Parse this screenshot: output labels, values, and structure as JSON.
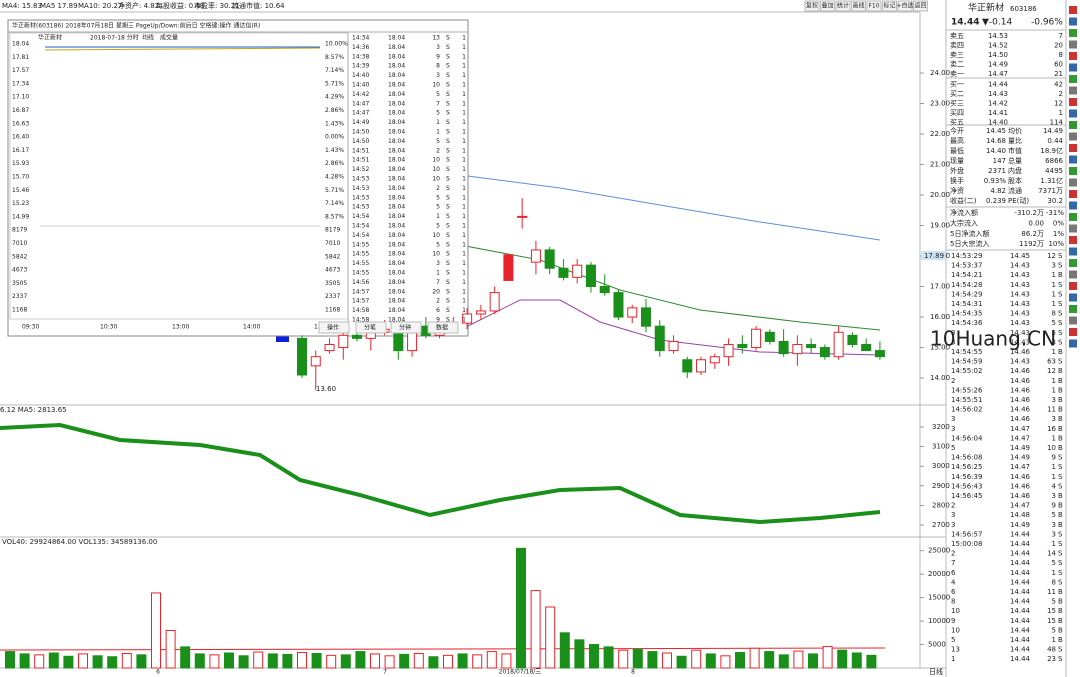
{
  "top_bar": {
    "ma": [
      "MA4: 15.83",
      "MA5 17.89",
      "MA10: 20.27"
    ],
    "fundamentals": [
      "净资产: 4.82",
      "每股收益: 0.48",
      "市盈率: 30.21",
      "流通市值: 10.64"
    ]
  },
  "toolbar": [
    "复权",
    "叠加",
    "统计",
    "画线",
    "F10",
    "标记",
    "+自选",
    "返回"
  ],
  "popup": {
    "title": "华正新材(603186) 2018年07月18日 星期三 PageUp/Down:前后日 空格键:操作 通达信(R)",
    "header": [
      "华正新材",
      "2018-07-18 分时",
      "均线",
      "成交量"
    ],
    "left_labels": [
      "18.04",
      "17.81",
      "17.57",
      "17.34",
      "17.10",
      "16.87",
      "16.63",
      "16.40",
      "16.17",
      "15.93",
      "15.70",
      "15.46",
      "15.23",
      "14.99",
      "8179",
      "7010",
      "5842",
      "4673",
      "3505",
      "2337",
      "1168"
    ],
    "right_labels": [
      "10.00%",
      "8.57%",
      "7.14%",
      "5.71%",
      "4.29%",
      "2.86%",
      "1.43%",
      "0.00%",
      "1.43%",
      "2.86%",
      "4.28%",
      "5.71%",
      "7.14%",
      "8.57%",
      "8179",
      "7010",
      "5842",
      "4673",
      "3505",
      "2337",
      "1168"
    ],
    "times": [
      "09:30",
      "10:30",
      "13:00",
      "14:00",
      "15:00"
    ],
    "buttons": [
      "操作",
      "分笔",
      "分钟",
      "数据"
    ],
    "ticks": [
      [
        "14:34",
        "18.04",
        "13",
        "S",
        "1"
      ],
      [
        "14:36",
        "18.04",
        "3",
        "S",
        "1"
      ],
      [
        "14:38",
        "18.04",
        "9",
        "S",
        "1"
      ],
      [
        "14:39",
        "18.04",
        "8",
        "S",
        "1"
      ],
      [
        "14:40",
        "18.04",
        "3",
        "S",
        "1"
      ],
      [
        "14:40",
        "18.04",
        "10",
        "S",
        "1"
      ],
      [
        "14:42",
        "18.04",
        "5",
        "S",
        "1"
      ],
      [
        "14:47",
        "18.04",
        "7",
        "S",
        "1"
      ],
      [
        "14:47",
        "18.04",
        "5",
        "S",
        "1"
      ],
      [
        "14:49",
        "18.04",
        "1",
        "S",
        "1"
      ],
      [
        "14:50",
        "18.04",
        "1",
        "S",
        "1"
      ],
      [
        "14:50",
        "18.04",
        "5",
        "S",
        "1"
      ],
      [
        "14:51",
        "18.04",
        "2",
        "S",
        "1"
      ],
      [
        "14:51",
        "18.04",
        "10",
        "S",
        "1"
      ],
      [
        "14:52",
        "18.04",
        "10",
        "S",
        "1"
      ],
      [
        "14:53",
        "18.04",
        "10",
        "S",
        "1"
      ],
      [
        "14:53",
        "18.04",
        "2",
        "S",
        "1"
      ],
      [
        "14:53",
        "18.04",
        "5",
        "S",
        "1"
      ],
      [
        "14:53",
        "18.04",
        "5",
        "S",
        "1"
      ],
      [
        "14:54",
        "18.04",
        "1",
        "S",
        "1"
      ],
      [
        "14:54",
        "18.04",
        "5",
        "S",
        "1"
      ],
      [
        "14:54",
        "18.04",
        "10",
        "S",
        "1"
      ],
      [
        "14:55",
        "18.04",
        "5",
        "S",
        "1"
      ],
      [
        "14:55",
        "18.04",
        "10",
        "S",
        "1"
      ],
      [
        "14:55",
        "18.04",
        "3",
        "S",
        "1"
      ],
      [
        "14:55",
        "18.04",
        "1",
        "S",
        "1"
      ],
      [
        "14:56",
        "18.04",
        "7",
        "S",
        "1"
      ],
      [
        "14:57",
        "18.04",
        "20",
        "S",
        "1"
      ],
      [
        "14:57",
        "18.04",
        "2",
        "S",
        "1"
      ],
      [
        "14:58",
        "18.04",
        "6",
        "S",
        "1"
      ],
      [
        "14:58",
        "18.04",
        "9",
        "S",
        "1"
      ]
    ]
  },
  "main_chart": {
    "ylim": [
      13.28,
      26.0
    ],
    "current_label": "17.89",
    "low_label": "13.60",
    "yticks": [
      {
        "value": 24,
        "label": "24.00"
      },
      {
        "value": 23,
        "label": "23.00"
      },
      {
        "value": 22,
        "label": "22.00"
      },
      {
        "value": 21,
        "label": "21.00"
      },
      {
        "value": 20,
        "label": "20.00"
      },
      {
        "value": 19,
        "label": "19.00"
      },
      {
        "value": 18,
        "label": "18.00"
      },
      {
        "value": 17,
        "label": "17.00"
      },
      {
        "value": 16,
        "label": "16.00"
      },
      {
        "value": 15,
        "label": "15.00"
      },
      {
        "value": 14,
        "label": "14.00"
      }
    ],
    "candles": [
      [
        15.3,
        15.4,
        14.0,
        14.1
      ],
      [
        14.4,
        14.9,
        13.6,
        14.7
      ],
      [
        14.9,
        15.3,
        14.8,
        15.1
      ],
      [
        15.0,
        15.5,
        14.6,
        15.4
      ],
      [
        15.4,
        15.7,
        15.2,
        15.3
      ],
      [
        15.3,
        15.6,
        14.9,
        15.5
      ],
      [
        15.5,
        15.9,
        15.4,
        15.6
      ],
      [
        15.6,
        15.8,
        14.6,
        14.9
      ],
      [
        14.9,
        15.8,
        14.7,
        15.7
      ],
      [
        15.7,
        16.0,
        15.3,
        15.4
      ],
      [
        15.4,
        15.8,
        15.3,
        15.6
      ],
      [
        15.6,
        16.0,
        15.5,
        15.8
      ],
      [
        15.8,
        16.3,
        15.6,
        16.1
      ],
      [
        16.1,
        16.4,
        15.9,
        16.2
      ],
      [
        16.2,
        17.0,
        16.1,
        16.8
      ],
      [
        17.2,
        18.04,
        17.2,
        18.04
      ],
      [
        19.3,
        19.9,
        18.9,
        19.3
      ],
      [
        17.8,
        18.5,
        17.4,
        18.2
      ],
      [
        18.2,
        18.3,
        17.4,
        17.6
      ],
      [
        17.6,
        17.9,
        17.2,
        17.3
      ],
      [
        17.3,
        17.9,
        17.1,
        17.7
      ],
      [
        17.7,
        17.8,
        16.8,
        17.0
      ],
      [
        17.0,
        17.4,
        16.7,
        16.8
      ],
      [
        16.8,
        16.9,
        15.9,
        16.0
      ],
      [
        16.0,
        16.4,
        15.8,
        16.3
      ],
      [
        16.3,
        16.6,
        15.5,
        15.7
      ],
      [
        15.7,
        15.9,
        14.7,
        14.9
      ],
      [
        14.9,
        15.4,
        14.8,
        15.2
      ],
      [
        14.6,
        14.7,
        14.0,
        14.2
      ],
      [
        14.2,
        14.7,
        14.1,
        14.6
      ],
      [
        14.5,
        14.8,
        14.3,
        14.7
      ],
      [
        14.7,
        15.3,
        14.4,
        15.1
      ],
      [
        15.1,
        15.4,
        14.8,
        15.0
      ],
      [
        15.0,
        15.7,
        14.9,
        15.6
      ],
      [
        15.5,
        15.6,
        15.1,
        15.2
      ],
      [
        15.2,
        15.6,
        14.7,
        14.8
      ],
      [
        14.8,
        15.4,
        14.4,
        15.1
      ],
      [
        15.1,
        15.3,
        14.8,
        15.0
      ],
      [
        15.0,
        15.1,
        14.6,
        14.7
      ],
      [
        14.7,
        15.7,
        14.6,
        15.5
      ],
      [
        15.4,
        15.5,
        15.0,
        15.1
      ],
      [
        15.1,
        15.3,
        14.9,
        14.9
      ],
      [
        14.9,
        15.2,
        14.6,
        14.7
      ]
    ]
  },
  "index_panel": {
    "label": "6.12 MA5: 2813.65",
    "ylim": [
      2639,
      3312
    ],
    "yticks": [
      3200,
      3100,
      3000,
      2900,
      2800,
      2700
    ]
  },
  "volume_panel": {
    "label": "VOL40: 29924864.00 VOL135: 34589136.00",
    "ylim": [
      0,
      26000
    ],
    "yticks": [
      25000,
      20000,
      15000,
      10000,
      5000
    ],
    "up": {
      "color": "#e8232c",
      "values": [
        null,
        null,
        2800,
        null,
        null,
        3000,
        null,
        null,
        3100,
        null,
        16000,
        8000,
        null,
        null,
        2800,
        null,
        null,
        3400,
        null,
        null,
        3300,
        null,
        2700,
        null,
        null,
        3000,
        2600,
        null,
        3100,
        null,
        2700,
        null,
        2800,
        3500,
        3000,
        null,
        16500,
        13000,
        null,
        null,
        null,
        null,
        3800,
        null,
        null,
        3200,
        null,
        3800,
        null,
        2600,
        null,
        4200,
        null,
        null,
        3600,
        null,
        4600,
        null,
        null,
        null
      ]
    },
    "down": {
      "color": "#1a8f1a",
      "values": [
        3500,
        3000,
        null,
        3200,
        2500,
        null,
        2600,
        2400,
        null,
        2800,
        null,
        null,
        4500,
        3000,
        null,
        3200,
        2600,
        null,
        3000,
        2900,
        null,
        3100,
        null,
        2800,
        3500,
        null,
        null,
        2900,
        null,
        2400,
        null,
        3000,
        null,
        null,
        null,
        25500,
        null,
        null,
        7500,
        6000,
        5000,
        4500,
        null,
        4000,
        3500,
        null,
        2500,
        null,
        3000,
        null,
        3300,
        null,
        3500,
        2800,
        null,
        3000,
        null,
        3800,
        3200,
        2700
      ]
    }
  },
  "x_labels": [
    "6",
    "7",
    "2018/07/18/三",
    "8"
  ],
  "watermark": "10Huang.CN",
  "period": "日线",
  "right_panel": {
    "name": "华正新材",
    "code": "603186",
    "price": "14.44",
    "change": "▼-0.14",
    "pct": "-0.96%",
    "order_book": [
      [
        "卖五",
        "14.53",
        "7"
      ],
      [
        "卖四",
        "14.52",
        "20"
      ],
      [
        "卖三",
        "14.50",
        "8"
      ],
      [
        "卖二",
        "14.49",
        "60"
      ],
      [
        "卖一",
        "14.47",
        "21"
      ],
      [
        "买一",
        "14.44",
        "42"
      ],
      [
        "买二",
        "14.43",
        "2"
      ],
      [
        "买三",
        "14.42",
        "12"
      ],
      [
        "买四",
        "14.41",
        "1"
      ],
      [
        "买五",
        "14.40",
        "114"
      ]
    ],
    "stats": [
      [
        "今开",
        "14.45",
        "均价",
        "14.49"
      ],
      [
        "最高",
        "14.68",
        "量比",
        "0.44"
      ],
      [
        "最低",
        "14.40",
        "市值",
        "18.9亿"
      ],
      [
        "现量",
        "147",
        "总量",
        "6866"
      ],
      [
        "外盘",
        "2371",
        "内盘",
        "4495"
      ],
      [
        "换手",
        "0.93%",
        "股本",
        "1.31亿"
      ],
      [
        "净资",
        "4.82",
        "流通",
        "7371万"
      ],
      [
        "收益(二)",
        "0.239",
        "PE(动)",
        "30.2"
      ]
    ],
    "flows": [
      [
        "净流入额",
        "-310.2万",
        "-31%"
      ],
      [
        "大宗流入",
        "0.00",
        "0%"
      ],
      [
        "5日净流入额",
        "86.2万",
        "1%"
      ],
      [
        "5日大宗流入",
        "1192万",
        "10%"
      ]
    ],
    "ticks": [
      [
        "14:53:29",
        "14.45",
        "12",
        "S"
      ],
      [
        "14:53:37",
        "14.43",
        "3",
        "S"
      ],
      [
        "14:54:21",
        "14.43",
        "1",
        "B"
      ],
      [
        "14:54:28",
        "14.43",
        "1",
        "S"
      ],
      [
        "14:54:29",
        "14.43",
        "1",
        "S"
      ],
      [
        "14:54:31",
        "14.43",
        "1",
        "S"
      ],
      [
        "14:54:35",
        "14.43",
        "8",
        "S"
      ],
      [
        "14:54:36",
        "14.43",
        "5",
        "S"
      ],
      [
        "3",
        "14.43",
        "5",
        "S"
      ],
      [
        "3",
        "14.43",
        "3",
        "S"
      ],
      [
        "14:54:55",
        "14.46",
        "1",
        "B"
      ],
      [
        "14:54:59",
        "14.43",
        "63",
        "S"
      ],
      [
        "14:55:02",
        "14.46",
        "12",
        "B"
      ],
      [
        "2",
        "14.46",
        "1",
        "B"
      ],
      [
        "14:55:26",
        "14.46",
        "1",
        "B"
      ],
      [
        "14:55:51",
        "14.46",
        "3",
        "B"
      ],
      [
        "14:56:02",
        "14.46",
        "11",
        "B"
      ],
      [
        "3",
        "14.46",
        "3",
        "B"
      ],
      [
        "3",
        "14.47",
        "16",
        "B"
      ],
      [
        "14:56:04",
        "14.47",
        "1",
        "B"
      ],
      [
        "5",
        "14.49",
        "10",
        "B"
      ],
      [
        "14:56:08",
        "14.49",
        "9",
        "S"
      ],
      [
        "14:56:25",
        "14.47",
        "1",
        "S"
      ],
      [
        "14:56:39",
        "14.46",
        "1",
        "S"
      ],
      [
        "14:56:43",
        "14.46",
        "4",
        "S"
      ],
      [
        "14:56:45",
        "14.46",
        "3",
        "B"
      ],
      [
        "2",
        "14.47",
        "9",
        "B"
      ],
      [
        "3",
        "14.48",
        "5",
        "B"
      ],
      [
        "3",
        "14.49",
        "3",
        "B"
      ],
      [
        "14:56:57",
        "14.44",
        "3",
        "S"
      ],
      [
        "15:00:08",
        "14.44",
        "1",
        "S"
      ],
      [
        "2",
        "14.44",
        "14",
        "S"
      ],
      [
        "7",
        "14.44",
        "5",
        "S"
      ],
      [
        "6",
        "14.44",
        "1",
        "S"
      ],
      [
        "4",
        "14.44",
        "8",
        "S"
      ],
      [
        "6",
        "14.44",
        "11",
        "B"
      ],
      [
        "8",
        "14.44",
        "5",
        "B"
      ],
      [
        "10",
        "14.44",
        "15",
        "B"
      ],
      [
        "9",
        "14.44",
        "15",
        "B"
      ],
      [
        "10",
        "14.44",
        "5",
        "B"
      ],
      [
        "5",
        "14.44",
        "1",
        "B"
      ],
      [
        "13",
        "14.44",
        "48",
        "S"
      ],
      [
        "1",
        "14.44",
        "23",
        "S"
      ]
    ]
  }
}
